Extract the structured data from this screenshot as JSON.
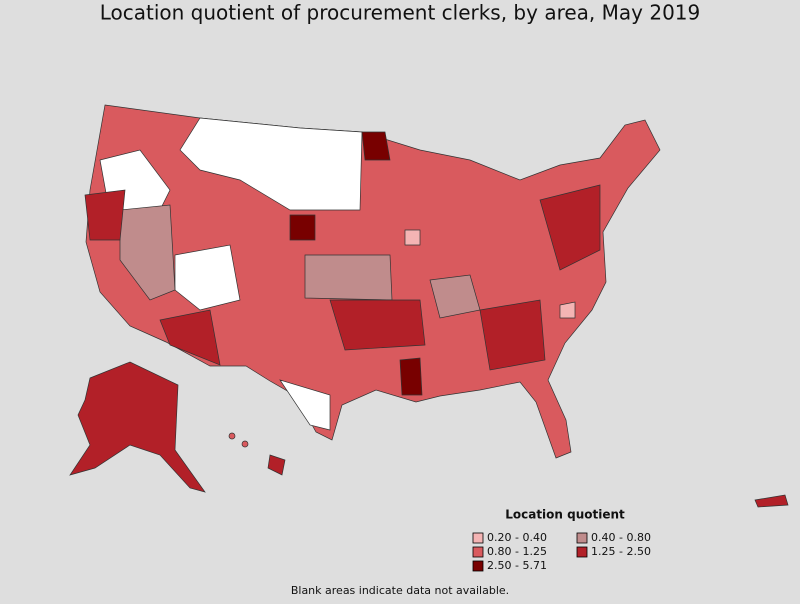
{
  "title": "Location quotient of procurement clerks, by area, May 2019",
  "legend": {
    "title": "Location quotient",
    "items": [
      {
        "label": "0.20 - 0.40",
        "color": "#f4b4b4"
      },
      {
        "label": "0.40 - 0.80",
        "color": "#c08c8c"
      },
      {
        "label": "0.80 - 1.25",
        "color": "#d95a5e"
      },
      {
        "label": "1.25 - 2.50",
        "color": "#b22028"
      },
      {
        "label": "2.50 - 5.71",
        "color": "#780000"
      }
    ]
  },
  "footnote": "Blank areas indicate data not available."
}
